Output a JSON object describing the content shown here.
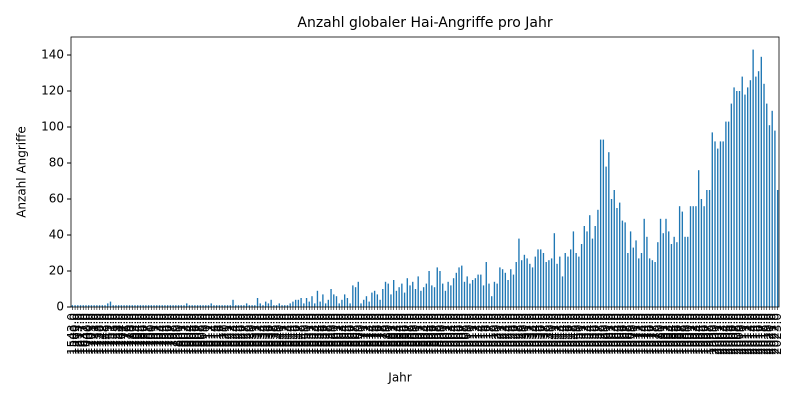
{
  "chart_data": {
    "type": "bar",
    "title": "Anzahl globaler Hai-Angriffe pro Jahr",
    "xlabel": "Jahr",
    "ylabel": "Anzahl Angriffe",
    "color": "#1f77b4",
    "categories": [
      "1543.0",
      "1580.0",
      "1595.0",
      "1617.0",
      "1637.0",
      "1642.0",
      "1700.0",
      "1703.0",
      "1721.0",
      "1733.0",
      "1738.0",
      "1742.0",
      "1748.0",
      "1749.0",
      "1751.0",
      "1753.0",
      "1755.0",
      "1758.0",
      "1764.0",
      "1771.0",
      "1776.0",
      "1779.0",
      "1780.0",
      "1783.0",
      "1784.0",
      "1785.0",
      "1786.0",
      "1787.0",
      "1788.0",
      "1790.0",
      "1791.0",
      "1792.0",
      "1793.0",
      "1794.0",
      "1795.0",
      "1796.0",
      "1797.0",
      "1798.0",
      "1799.0",
      "1800.0",
      "1801.0",
      "1802.0",
      "1803.0",
      "1804.0",
      "1805.0",
      "1806.0",
      "1807.0",
      "1808.0",
      "1809.0",
      "1810.0",
      "1811.0",
      "1812.0",
      "1814.0",
      "1815.0",
      "1816.0",
      "1817.0",
      "1820.0",
      "1821.0",
      "1822.0",
      "1823.0",
      "1824.0",
      "1825.0",
      "1826.0",
      "1827.0",
      "1828.0",
      "1829.0",
      "1830.0",
      "1831.0",
      "1832.0",
      "1833.0",
      "1834.0",
      "1835.0",
      "1836.0",
      "1837.0",
      "1838.0",
      "1839.0",
      "1840.0",
      "1841.0",
      "1842.0",
      "1843.0",
      "1844.0",
      "1845.0",
      "1846.0",
      "1847.0",
      "1848.0",
      "1849.0",
      "1850.0",
      "1851.0",
      "1852.0",
      "1853.0",
      "1854.0",
      "1855.0",
      "1856.0",
      "1857.0",
      "1858.0",
      "1859.0",
      "1860.0",
      "1861.0",
      "1862.0",
      "1863.0",
      "1864.0",
      "1865.0",
      "1866.0",
      "1867.0",
      "1868.0",
      "1869.0",
      "1870.0",
      "1871.0",
      "1872.0",
      "1873.0",
      "1874.0",
      "1875.0",
      "1876.0",
      "1877.0",
      "1878.0",
      "1879.0",
      "1880.0",
      "1881.0",
      "1882.0",
      "1883.0",
      "1884.0",
      "1885.0",
      "1886.0",
      "1887.0",
      "1888.0",
      "1889.0",
      "1890.0",
      "1891.0",
      "1892.0",
      "1893.0",
      "1894.0",
      "1895.0",
      "1896.0",
      "1897.0",
      "1898.0",
      "1899.0",
      "1900.0",
      "1901.0",
      "1902.0",
      "1903.0",
      "1904.0",
      "1905.0",
      "1906.0",
      "1907.0",
      "1908.0",
      "1909.0",
      "1910.0",
      "1911.0",
      "1912.0",
      "1913.0",
      "1914.0",
      "1915.0",
      "1916.0",
      "1917.0",
      "1918.0",
      "1919.0",
      "1920.0",
      "1921.0",
      "1922.0",
      "1923.0",
      "1924.0",
      "1925.0",
      "1926.0",
      "1927.0",
      "1928.0",
      "1929.0",
      "1930.0",
      "1931.0",
      "1932.0",
      "1933.0",
      "1934.0",
      "1935.0",
      "1936.0",
      "1937.0",
      "1938.0",
      "1939.0",
      "1940.0",
      "1941.0",
      "1942.0",
      "1943.0",
      "1944.0",
      "1945.0",
      "1946.0",
      "1947.0",
      "1948.0",
      "1949.0",
      "1950.0",
      "1951.0",
      "1952.0",
      "1953.0",
      "1954.0",
      "1955.0",
      "1956.0",
      "1957.0",
      "1958.0",
      "1959.0",
      "1960.0",
      "1961.0",
      "1962.0",
      "1963.0",
      "1964.0",
      "1965.0",
      "1966.0",
      "1967.0",
      "1968.0",
      "1969.0",
      "1970.0",
      "1971.0",
      "1972.0",
      "1973.0",
      "1974.0",
      "1975.0",
      "1976.0",
      "1977.0",
      "1978.0",
      "1979.0",
      "1980.0",
      "1981.0",
      "1982.0",
      "1983.0",
      "1984.0",
      "1985.0",
      "1986.0",
      "1987.0",
      "1988.0",
      "1989.0",
      "1990.0",
      "1991.0",
      "1992.0",
      "1993.0",
      "1994.0",
      "1995.0",
      "1996.0",
      "1997.0",
      "1998.0",
      "1999.0",
      "2000.0",
      "2001.0",
      "2002.0",
      "2003.0",
      "2004.0",
      "2005.0",
      "2006.0",
      "2007.0",
      "2008.0",
      "2009.0",
      "2010.0",
      "2011.0",
      "2012.0",
      "2013.0",
      "2014.0",
      "2015.0",
      "2016.0",
      "2017.0",
      "2018.0",
      "2019.0",
      "2020.0",
      "2021.0",
      "2022.0",
      "2023.0"
    ],
    "values": [
      1,
      1,
      1,
      1,
      1,
      1,
      1,
      1,
      1,
      1,
      1,
      1,
      1,
      2,
      3,
      1,
      1,
      1,
      1,
      1,
      1,
      1,
      1,
      1,
      1,
      1,
      1,
      1,
      1,
      1,
      1,
      1,
      1,
      1,
      1,
      1,
      1,
      1,
      1,
      1,
      1,
      1,
      2,
      1,
      1,
      1,
      1,
      1,
      1,
      1,
      1,
      2,
      1,
      1,
      1,
      1,
      1,
      1,
      1,
      4,
      1,
      1,
      1,
      1,
      2,
      1,
      1,
      1,
      5,
      2,
      1,
      3,
      2,
      4,
      1,
      1,
      2,
      1,
      1,
      1,
      2,
      3,
      4,
      4,
      5,
      2,
      5,
      3,
      6,
      2,
      9,
      3,
      7,
      2,
      4,
      10,
      7,
      6,
      2,
      4,
      7,
      5,
      2,
      12,
      11,
      14,
      2,
      4,
      6,
      3,
      8,
      9,
      7,
      4,
      10,
      14,
      13,
      7,
      15,
      9,
      11,
      13,
      8,
      16,
      12,
      14,
      10,
      17,
      9,
      11,
      13,
      20,
      12,
      11,
      22,
      20,
      13,
      9,
      14,
      12,
      16,
      19,
      22,
      23,
      14,
      17,
      13,
      15,
      16,
      18,
      18,
      12,
      25,
      13,
      6,
      14,
      13,
      22,
      21,
      19,
      15,
      21,
      18,
      25,
      38,
      26,
      29,
      27,
      24,
      22,
      28,
      32,
      32,
      30,
      25,
      26,
      27,
      41,
      24,
      28,
      17,
      30,
      28,
      32,
      42,
      30,
      28,
      35,
      45,
      42,
      51,
      38,
      45,
      54,
      93,
      93,
      78,
      86,
      60,
      65,
      55,
      58,
      48,
      47,
      30,
      42,
      33,
      37,
      27,
      30,
      49,
      39,
      27,
      26,
      25,
      36,
      49,
      41,
      49,
      42,
      35,
      39,
      36,
      56,
      53,
      39,
      39,
      56,
      56,
      56,
      76,
      60,
      56,
      65,
      65,
      97,
      92,
      88,
      92,
      92,
      103,
      103,
      113,
      122,
      120,
      120,
      128,
      118,
      122,
      126,
      143,
      128,
      131,
      139,
      124,
      113,
      101,
      109,
      98,
      65
    ],
    "ylim": [
      0,
      150
    ],
    "yticks": [
      0,
      20,
      40,
      60,
      80,
      100,
      120,
      140
    ],
    "grid": false
  }
}
